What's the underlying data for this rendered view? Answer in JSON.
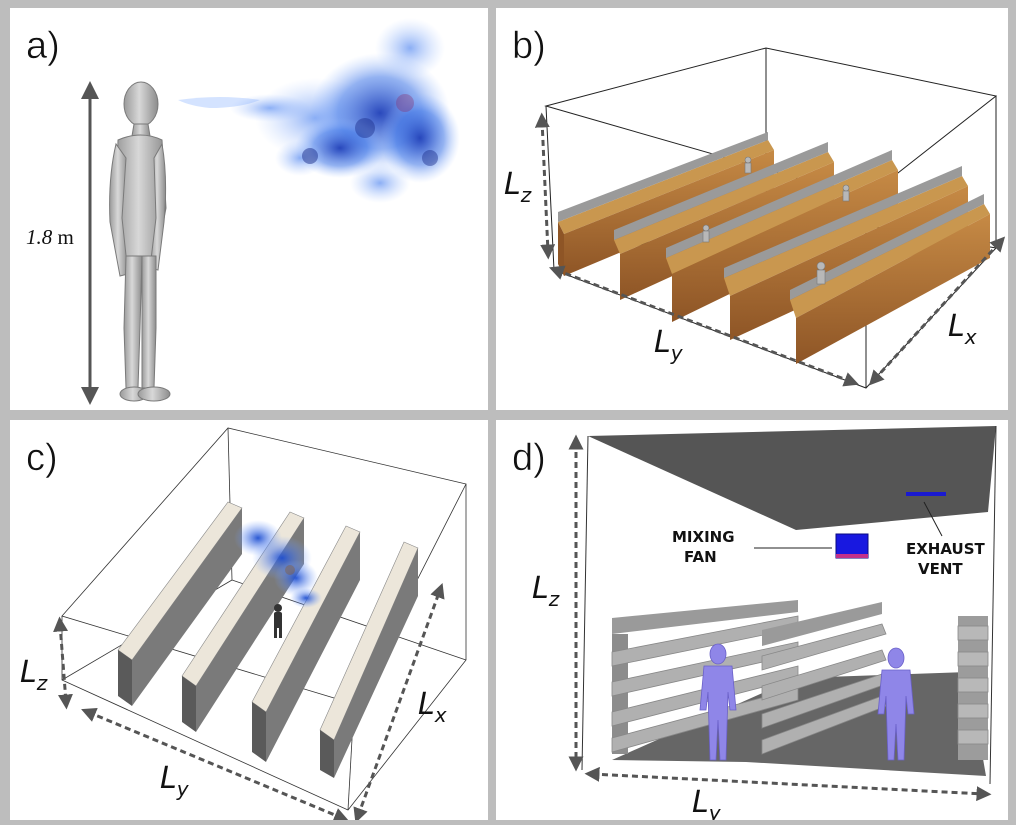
{
  "panels": {
    "a": {
      "label": "a)",
      "height_value": "1.8",
      "height_unit": "m"
    },
    "b": {
      "label": "b)",
      "dim_z": "L",
      "dim_z_sub": "z",
      "dim_y": "L",
      "dim_y_sub": "y",
      "dim_x": "L",
      "dim_x_sub": "x"
    },
    "c": {
      "label": "c)",
      "dim_z": "L",
      "dim_z_sub": "z",
      "dim_y": "L",
      "dim_y_sub": "y",
      "dim_x": "L",
      "dim_x_sub": "x"
    },
    "d": {
      "label": "d)",
      "dim_z": "L",
      "dim_z_sub": "z",
      "dim_y": "L",
      "dim_y_sub": "y",
      "mixing_fan_line1": "MIXING",
      "mixing_fan_line2": "FAN",
      "exhaust_vent_line1": "EXHAUST",
      "exhaust_vent_line2": "VENT"
    }
  },
  "colors": {
    "panel_border": "#bdbdbd",
    "shelf_wood": "#b5793b",
    "shelf_wood_top": "#c9974f",
    "shelf_metal": "#8a8a8a",
    "plume_blue": "#2a5bd7",
    "person_purple": "#8f86e8",
    "wall_grey": "#6b6b6b"
  },
  "icons": [
    "human-figure-icon",
    "aerosol-plume-icon",
    "mixing-fan-icon",
    "exhaust-vent-icon"
  ]
}
